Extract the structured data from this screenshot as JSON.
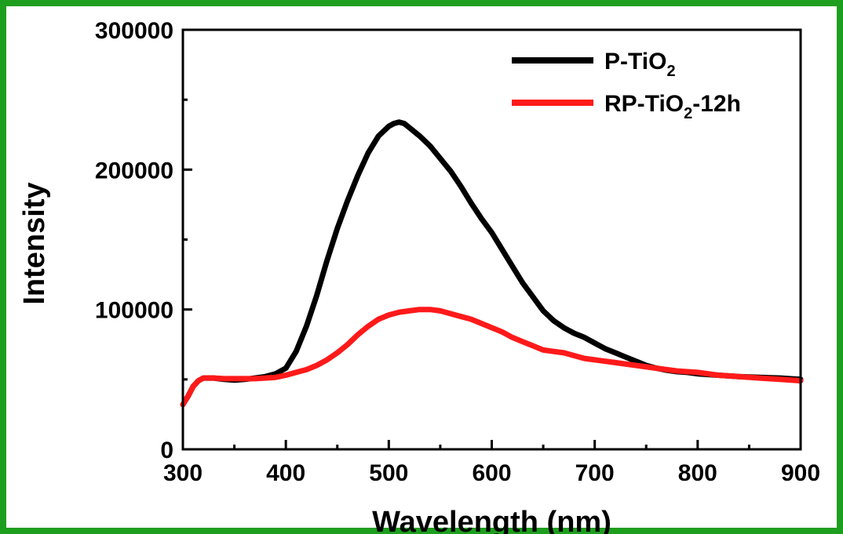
{
  "chart_data": {
    "type": "line",
    "title": "",
    "xlabel": "Wavelength (nm)",
    "ylabel": "Intensity",
    "xlim": [
      300,
      900
    ],
    "ylim": [
      0,
      300000
    ],
    "x_ticks": [
      300,
      400,
      500,
      600,
      700,
      800,
      900
    ],
    "y_ticks": [
      0,
      100000,
      200000,
      300000
    ],
    "grid": false,
    "legend_position": "top-right",
    "frame_color": "#1e9e1e",
    "series": [
      {
        "name": "P-TiO2",
        "legend_base": "P-TiO",
        "legend_sub": "2",
        "legend_suffix": "",
        "color": "#000000",
        "x": [
          300,
          305,
          310,
          315,
          320,
          330,
          340,
          350,
          360,
          370,
          380,
          390,
          400,
          410,
          420,
          430,
          440,
          450,
          460,
          470,
          480,
          490,
          500,
          505,
          510,
          515,
          520,
          530,
          540,
          550,
          560,
          570,
          580,
          590,
          600,
          610,
          620,
          630,
          640,
          650,
          660,
          670,
          680,
          690,
          700,
          710,
          720,
          730,
          740,
          750,
          760,
          770,
          780,
          790,
          800,
          820,
          840,
          860,
          880,
          900
        ],
        "y": [
          32000,
          38000,
          45000,
          49000,
          51000,
          51000,
          50000,
          49500,
          50000,
          51000,
          52000,
          54000,
          58000,
          70000,
          88000,
          110000,
          135000,
          158000,
          178000,
          196000,
          212000,
          224000,
          231000,
          233000,
          234000,
          233000,
          230000,
          224000,
          217000,
          208000,
          199000,
          188000,
          176000,
          165000,
          155000,
          143000,
          131000,
          119000,
          109000,
          99000,
          92000,
          87000,
          83000,
          80000,
          76000,
          72000,
          69000,
          66000,
          63000,
          60000,
          58000,
          56500,
          55500,
          55000,
          54000,
          53000,
          52000,
          51500,
          51000,
          50000
        ]
      },
      {
        "name": "RP-TiO2-12h",
        "legend_base": "RP-TiO",
        "legend_sub": "2",
        "legend_suffix": "-12h",
        "color": "#ff1a1a",
        "x": [
          300,
          305,
          310,
          315,
          320,
          330,
          340,
          350,
          360,
          370,
          380,
          390,
          400,
          410,
          420,
          430,
          440,
          450,
          460,
          470,
          480,
          490,
          500,
          510,
          520,
          530,
          540,
          550,
          560,
          570,
          580,
          590,
          600,
          610,
          620,
          630,
          640,
          650,
          660,
          670,
          680,
          690,
          700,
          720,
          740,
          760,
          780,
          800,
          820,
          840,
          860,
          880,
          900
        ],
        "y": [
          32000,
          38000,
          45000,
          49000,
          51000,
          51000,
          50500,
          50500,
          50500,
          50500,
          51000,
          51500,
          53000,
          55000,
          57000,
          60000,
          64000,
          69000,
          75000,
          82000,
          88000,
          93000,
          96000,
          98000,
          99000,
          100000,
          100000,
          99000,
          97000,
          95000,
          93000,
          90000,
          87000,
          84000,
          80000,
          77000,
          74000,
          71000,
          70000,
          69000,
          67000,
          65000,
          64000,
          62000,
          60000,
          58000,
          56000,
          55000,
          53000,
          52000,
          51000,
          50000,
          49000
        ]
      }
    ]
  }
}
